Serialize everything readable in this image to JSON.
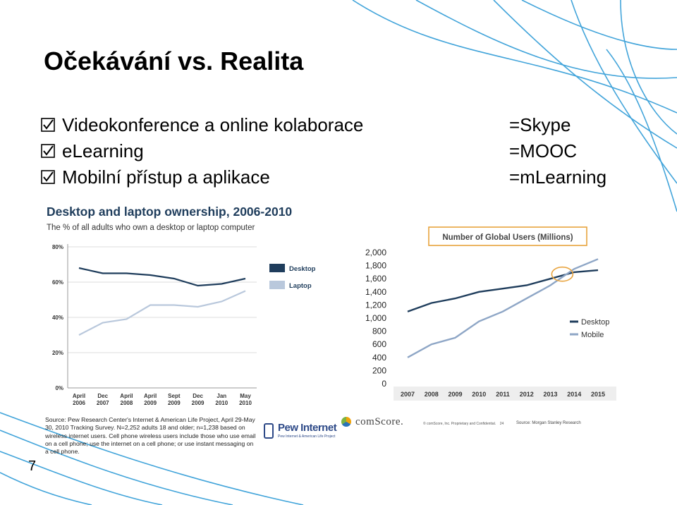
{
  "slide": {
    "title": "Očekávání vs. Realita",
    "number": "7",
    "bullets": [
      {
        "text": "Videokonference a online kolaborace",
        "equals": "=Skype"
      },
      {
        "text": "eLearning",
        "equals": "=MOOC"
      },
      {
        "text": "Mobilní přístup a aplikace",
        "equals": "=mLearning"
      }
    ],
    "icons": {
      "bullet": "checkbox-checked-icon"
    }
  },
  "pew_source": {
    "text": "Source: Pew Research Center's Internet & American Life Project, April 29-May 30, 2010 Tracking Survey. N=2,252 adults 18 and older; n=1,238 based on wireless internet users. Cell phone wireless users include those who use email on a cell phone; use the internet on a cell phone; or use instant messaging on a cell phone.",
    "logo_name": "Pew Internet",
    "logo_sub": "Pew Internet & American Life Project"
  },
  "comscore": {
    "logo": "comScore.",
    "copyright": "© comScore, Inc.  Proprietary and Confidential.",
    "page": "24",
    "source": "Source: Morgan Stanley Research"
  },
  "colors": {
    "desktop": "#1f3d5c",
    "laptop": "#b9c8dc",
    "mobile": "#8ea6c6",
    "highlight": "#e8a33d",
    "deco_lines": "#2e9bd6"
  },
  "chart_data": [
    {
      "type": "line",
      "title": "Desktop and laptop ownership, 2006-2010",
      "subtitle": "The % of all adults who own a desktop or laptop computer",
      "categories": [
        "April 2006",
        "Dec 2007",
        "April 2008",
        "April 2009",
        "Sept 2009",
        "Dec 2009",
        "Jan 2010",
        "May 2010"
      ],
      "category_lines": [
        [
          "April",
          "2006"
        ],
        [
          "Dec",
          "2007"
        ],
        [
          "April",
          "2008"
        ],
        [
          "April",
          "2009"
        ],
        [
          "Sept",
          "2009"
        ],
        [
          "Dec",
          "2009"
        ],
        [
          "Jan",
          "2010"
        ],
        [
          "May",
          "2010"
        ]
      ],
      "series": [
        {
          "name": "Desktop",
          "values": [
            68,
            65,
            65,
            64,
            62,
            58,
            59,
            62
          ]
        },
        {
          "name": "Laptop",
          "values": [
            30,
            37,
            39,
            47,
            47,
            46,
            49,
            55
          ]
        }
      ],
      "yticks": [
        "0%",
        "20%",
        "40%",
        "60%",
        "80%"
      ],
      "ylim": [
        0,
        80
      ],
      "grid": true,
      "legend": "right"
    },
    {
      "type": "line",
      "title": "Number of Global Users (Millions)",
      "x": [
        "2007",
        "2008",
        "2009",
        "2010",
        "2011",
        "2012",
        "2013",
        "2014",
        "2015"
      ],
      "series": [
        {
          "name": "Desktop",
          "values": [
            1100,
            1230,
            1300,
            1400,
            1450,
            1500,
            1600,
            1700,
            1730
          ]
        },
        {
          "name": "Mobile",
          "values": [
            400,
            600,
            700,
            950,
            1100,
            1300,
            1500,
            1750,
            1900
          ]
        }
      ],
      "yticks": [
        "0",
        "200",
        "400",
        "600",
        "800",
        "1,000",
        "1,200",
        "1,400",
        "1,600",
        "1,800",
        "2,000"
      ],
      "ylim": [
        0,
        2000
      ],
      "grid": false,
      "legend": "bottom-right",
      "annotation": "crossover circled near 2013-2014"
    }
  ]
}
